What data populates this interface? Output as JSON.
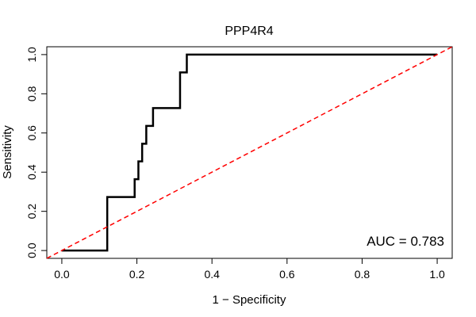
{
  "chart_data": {
    "type": "line",
    "title": "PPP4R4",
    "xlabel": "1 − Specificity",
    "ylabel": "Sensitivity",
    "xlim": [
      -0.04,
      1.04
    ],
    "ylim": [
      -0.04,
      1.04
    ],
    "x_ticks": [
      0.0,
      0.2,
      0.4,
      0.6,
      0.8,
      1.0
    ],
    "x_tick_labels": [
      "0.0",
      "0.2",
      "0.4",
      "0.6",
      "0.8",
      "1.0"
    ],
    "y_ticks": [
      0.0,
      0.2,
      0.4,
      0.6,
      0.8,
      1.0
    ],
    "y_tick_labels": [
      "0.0",
      "0.2",
      "0.4",
      "0.6",
      "0.8",
      "1.0"
    ],
    "grid": false,
    "annotation": "AUC = 0.783",
    "series": [
      {
        "style": "solid",
        "color": "#000000",
        "x": [
          0.0,
          0.121,
          0.121,
          0.194,
          0.194,
          0.204,
          0.204,
          0.214,
          0.214,
          0.225,
          0.225,
          0.243,
          0.243,
          0.315,
          0.315,
          0.333,
          0.333,
          1.0
        ],
        "y": [
          0.0,
          0.0,
          0.273,
          0.273,
          0.364,
          0.364,
          0.455,
          0.455,
          0.545,
          0.545,
          0.636,
          0.636,
          0.727,
          0.727,
          0.909,
          0.909,
          1.0,
          1.0
        ]
      },
      {
        "style": "dashed",
        "color": "#ff0000",
        "x": [
          -0.04,
          1.04
        ],
        "y": [
          -0.04,
          1.04
        ]
      }
    ]
  }
}
